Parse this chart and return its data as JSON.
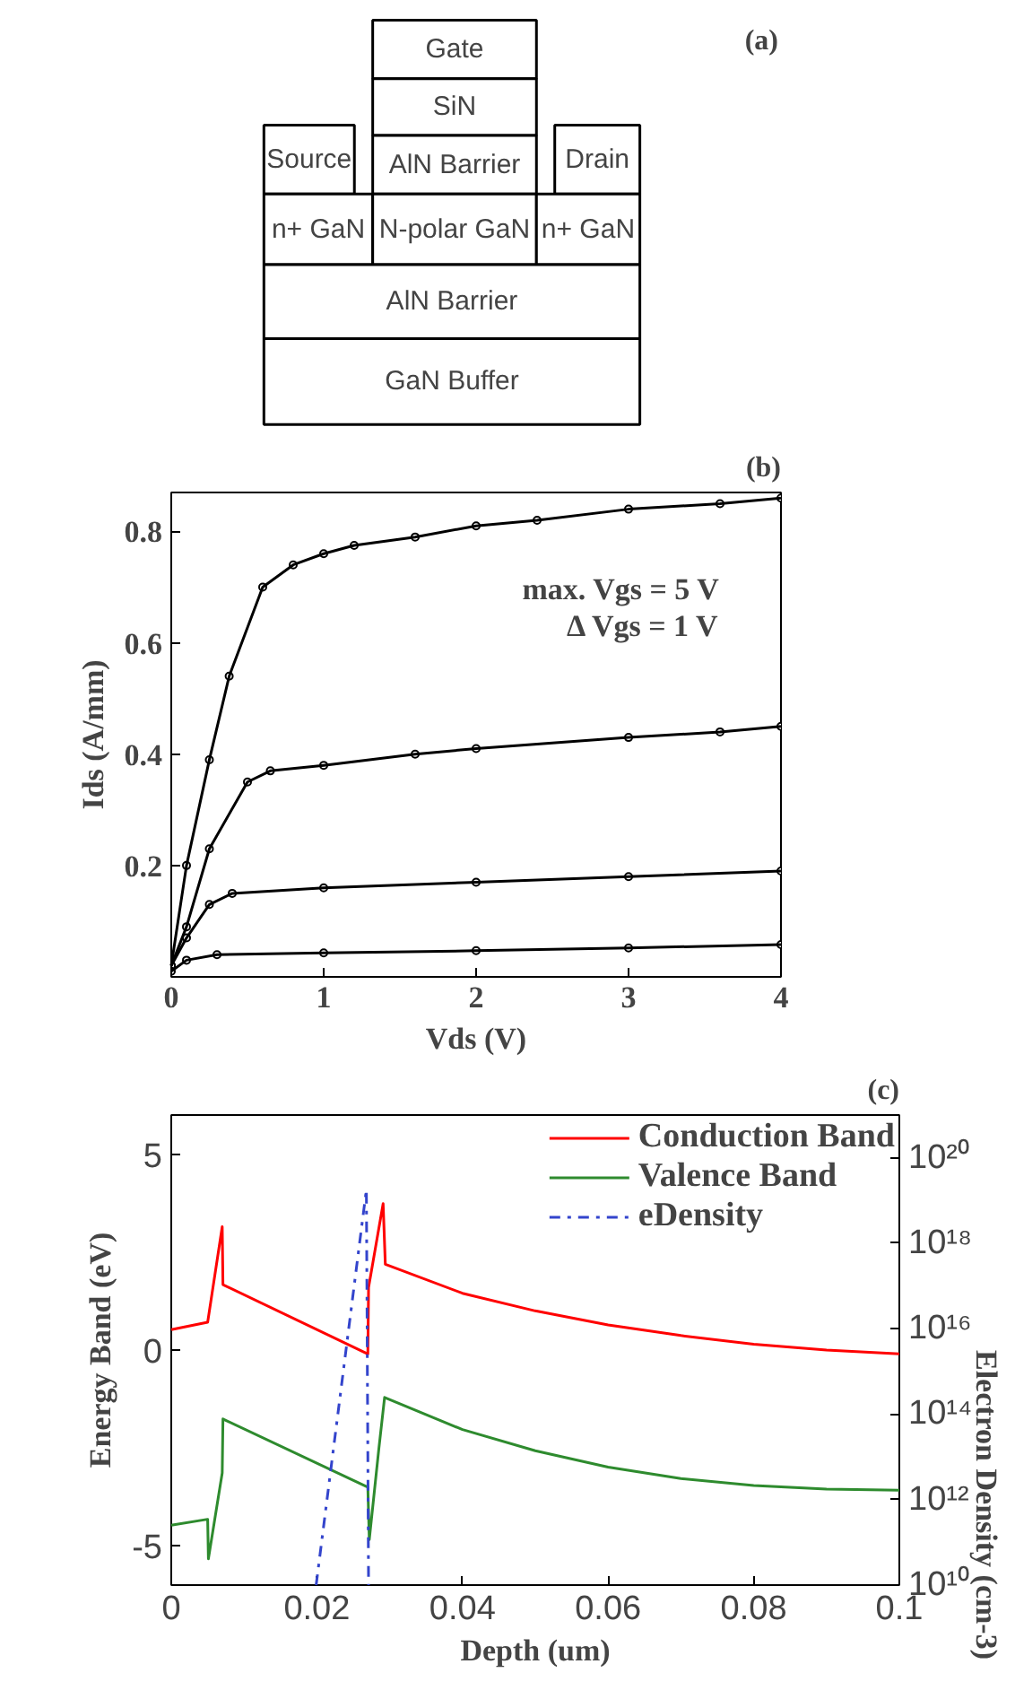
{
  "chart_data": [
    {
      "type": "other",
      "title": "(a)",
      "annotations": [
        "Gate",
        "SiN",
        "AlN Barrier",
        "Source",
        "Drain",
        "n+ GaN",
        "N-polar GaN",
        "n+ GaN",
        "AlN Barrier",
        "GaN Buffer"
      ]
    },
    {
      "type": "line",
      "title": "(b)",
      "xlabel": "Vds (V)",
      "ylabel": "Ids (A/mm)",
      "xlim": [
        0,
        4
      ],
      "ylim": [
        0,
        0.87
      ],
      "xticks": [
        0,
        1,
        2,
        3,
        4
      ],
      "yticks": [
        0.2,
        0.4,
        0.6,
        0.8
      ],
      "grid": false,
      "legend": false,
      "marker": "circle",
      "line_style": "solid",
      "annotations": [
        "max. Vgs = 5 V",
        "Δ Vgs = 1 V"
      ],
      "series": [
        {
          "color": "#000000",
          "x": [
            0,
            0.1,
            0.25,
            0.38,
            0.6,
            0.8,
            1.0,
            1.2,
            1.6,
            2.0,
            2.4,
            3.0,
            3.6,
            4.0
          ],
          "values": [
            0.02,
            0.2,
            0.39,
            0.54,
            0.7,
            0.74,
            0.76,
            0.775,
            0.79,
            0.81,
            0.82,
            0.84,
            0.85,
            0.86
          ]
        },
        {
          "color": "#000000",
          "x": [
            0,
            0.1,
            0.25,
            0.5,
            0.65,
            1.0,
            1.6,
            2.0,
            3.0,
            3.6,
            4.0
          ],
          "values": [
            0.02,
            0.09,
            0.23,
            0.35,
            0.37,
            0.38,
            0.4,
            0.41,
            0.43,
            0.44,
            0.45
          ]
        },
        {
          "color": "#000000",
          "x": [
            0,
            0.1,
            0.25,
            0.4,
            1.0,
            2.0,
            3.0,
            4.0
          ],
          "values": [
            0.02,
            0.07,
            0.13,
            0.15,
            0.16,
            0.17,
            0.18,
            0.19
          ]
        },
        {
          "color": "#000000",
          "x": [
            0,
            0.1,
            0.3,
            1.0,
            2.0,
            3.0,
            4.0
          ],
          "values": [
            0.01,
            0.03,
            0.04,
            0.043,
            0.047,
            0.052,
            0.058
          ]
        }
      ]
    },
    {
      "type": "line",
      "title": "(c)",
      "xlabel": "Depth (um)",
      "ylabel": "Energy Band (eV)",
      "y2label": "Electron Density (cm-3)",
      "xlim": [
        0,
        0.1
      ],
      "ylim": [
        -6,
        6
      ],
      "y2lim": [
        10000000000.0,
        1e+21
      ],
      "log": "y2",
      "xticks": [
        0,
        0.02,
        0.04,
        0.06,
        0.08,
        0.1
      ],
      "yticks": [
        -5,
        0,
        5
      ],
      "y2ticks": [
        {
          "value": 10000000000.0,
          "label": "10¹⁰"
        },
        {
          "value": 1000000000000.0,
          "label": "10¹²"
        },
        {
          "value": 100000000000000.0,
          "label": "10¹⁴"
        },
        {
          "value": 1e+16,
          "label": "10¹⁶"
        },
        {
          "value": 1e+18,
          "label": "10¹⁸"
        },
        {
          "value": 1e+20,
          "label": "10²⁰"
        }
      ],
      "grid": false,
      "legend": "top right",
      "marker": "none",
      "series": [
        {
          "name": "Conduction Band",
          "color": "#ff0000",
          "line_style": "solid",
          "x": [
            0,
            0.005,
            0.007,
            0.0071,
            0.027,
            0.0271,
            0.0291,
            0.0294,
            0.04,
            0.05,
            0.06,
            0.07,
            0.08,
            0.09,
            0.1
          ],
          "values": [
            0.52,
            0.71,
            3.15,
            1.67,
            -0.1,
            1.6,
            3.74,
            2.19,
            1.45,
            1.0,
            0.64,
            0.37,
            0.15,
            0.0,
            -0.1
          ]
        },
        {
          "name": "Valence Band",
          "color": "#2e8b2e",
          "line_style": "solid",
          "x": [
            0,
            0.005,
            0.0051,
            0.007,
            0.0071,
            0.027,
            0.0272,
            0.0285,
            0.0293,
            0.04,
            0.05,
            0.06,
            0.07,
            0.08,
            0.09,
            0.1
          ],
          "values": [
            -4.47,
            -4.32,
            -5.33,
            -3.14,
            -1.76,
            -3.5,
            -4.84,
            -2.54,
            -1.21,
            -2.03,
            -2.57,
            -2.99,
            -3.28,
            -3.46,
            -3.55,
            -3.58
          ]
        },
        {
          "name": "eDensity",
          "color": "#3344cc",
          "line_style": "dashdot",
          "axis": "y2",
          "x": [
            0.0199,
            0.0268,
            0.0271
          ],
          "values": [
            10000000000.0,
            1.8e+19,
            10000000000.0
          ]
        }
      ]
    }
  ]
}
